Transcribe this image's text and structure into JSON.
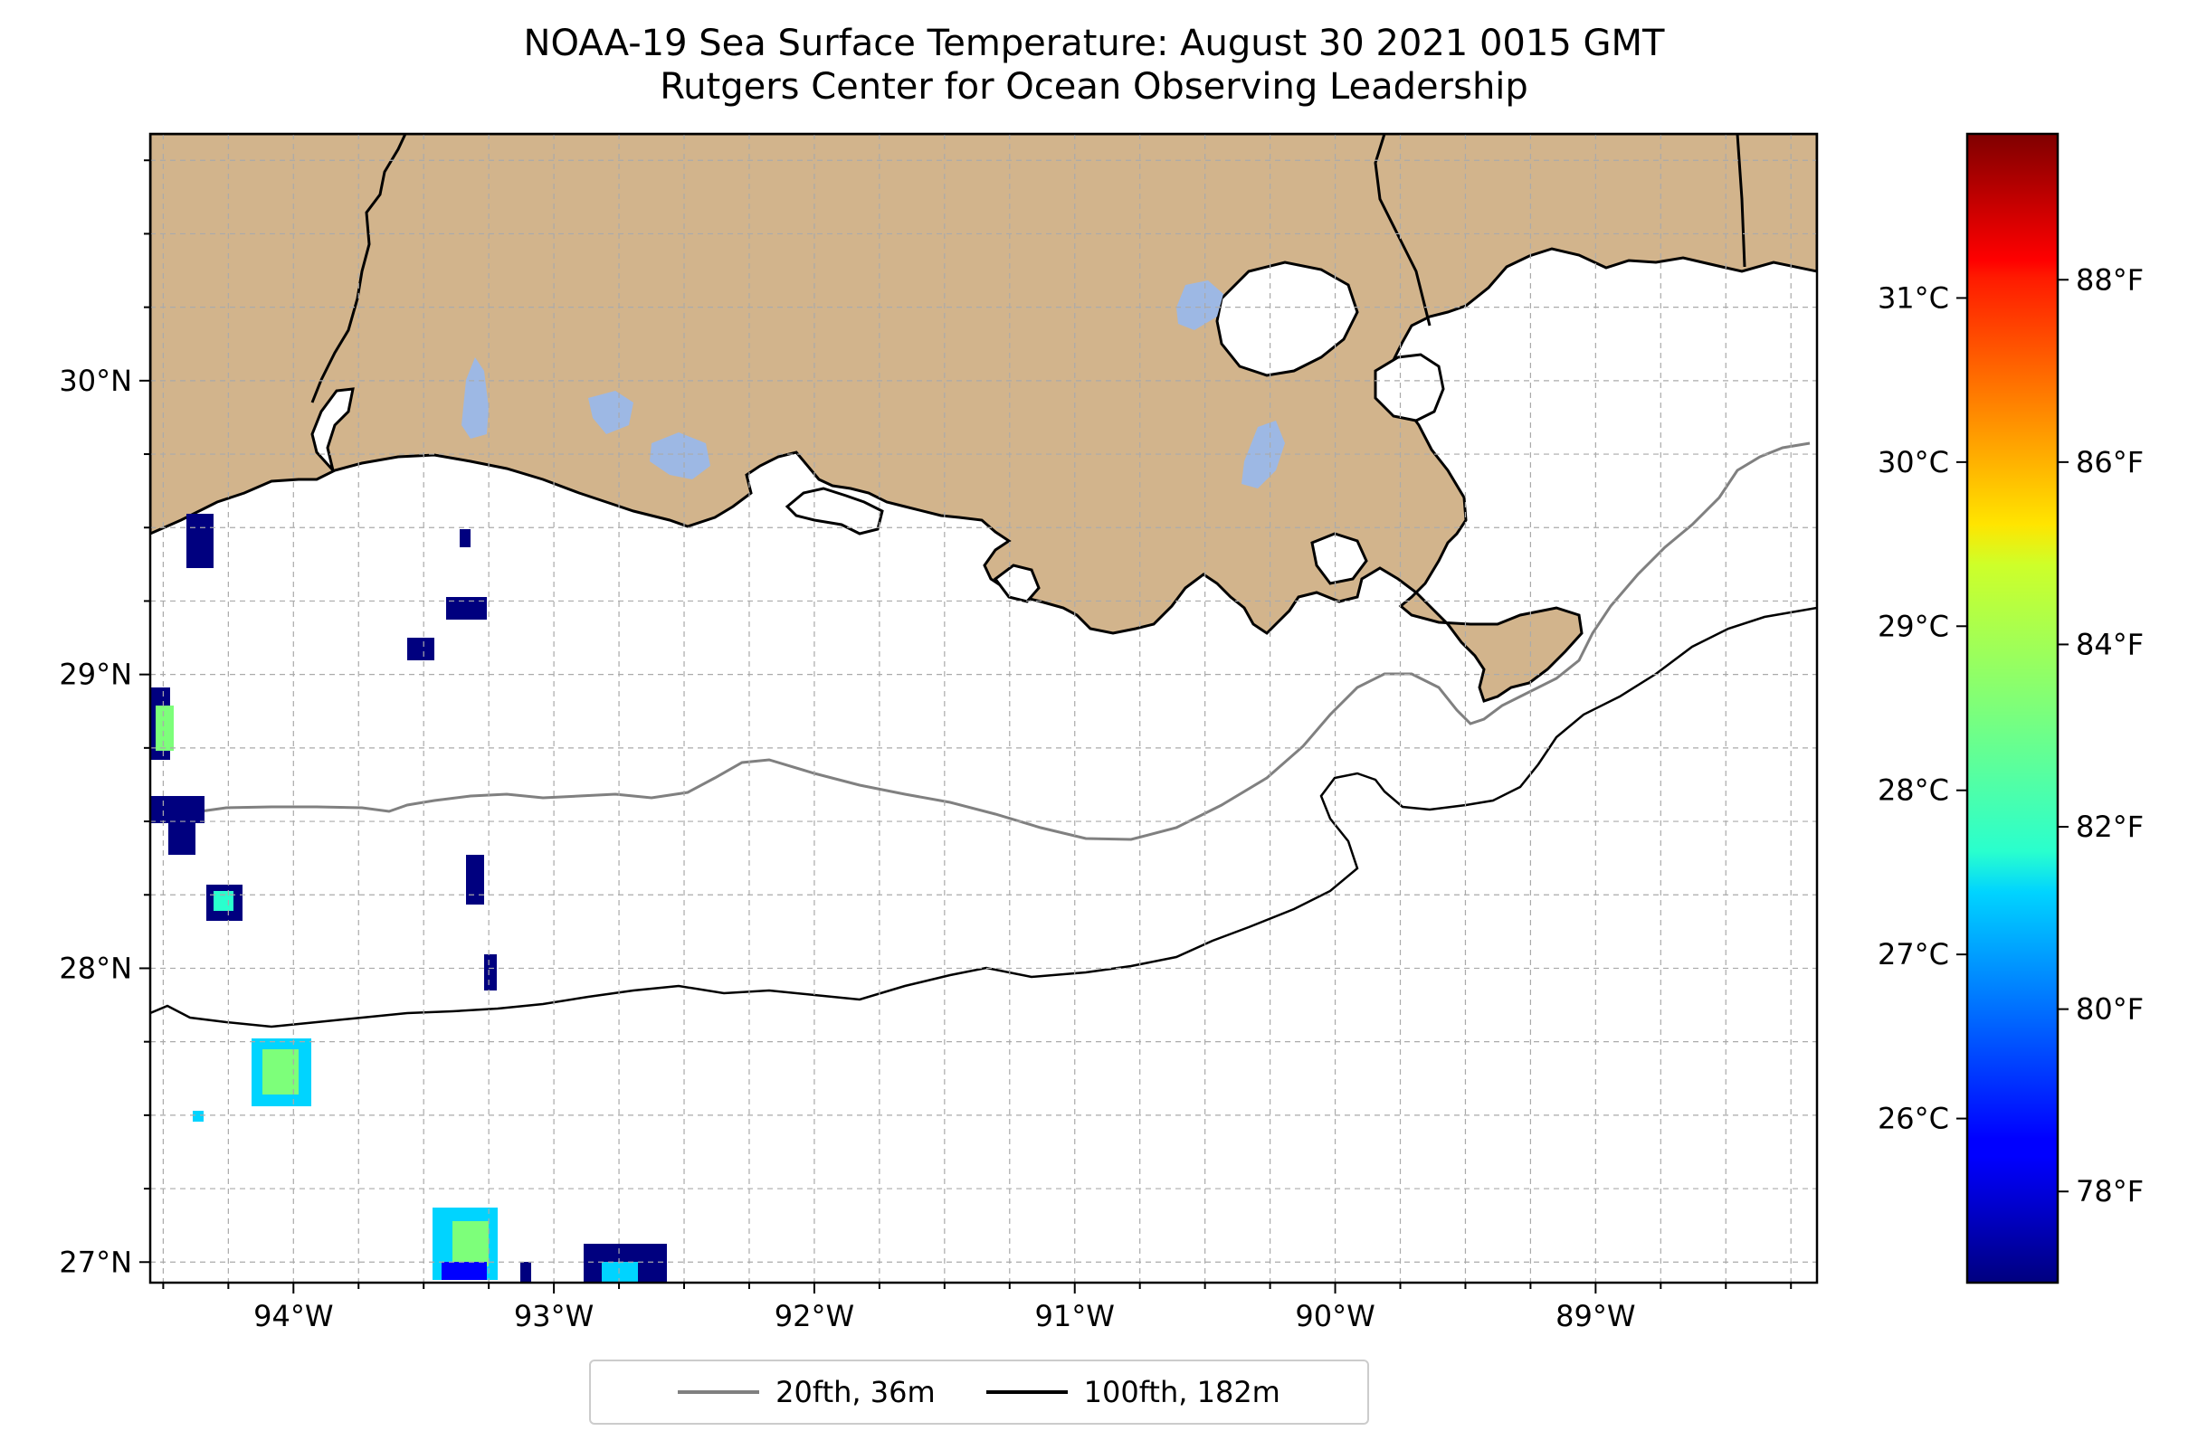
{
  "title": {
    "line1": "NOAA-19 Sea Surface Temperature: August 30 2021 0015 GMT",
    "line2": "Rutgers Center for Ocean Observing Leadership"
  },
  "map": {
    "lon_range": [
      -94.55,
      -88.15
    ],
    "lat_range": [
      26.93,
      30.84
    ],
    "lon_ticks": [
      {
        "value": -94,
        "label": "94°W"
      },
      {
        "value": -93,
        "label": "93°W"
      },
      {
        "value": -92,
        "label": "92°W"
      },
      {
        "value": -91,
        "label": "91°W"
      },
      {
        "value": -90,
        "label": "90°W"
      },
      {
        "value": -89,
        "label": "89°W"
      }
    ],
    "lat_ticks": [
      {
        "value": 27,
        "label": "27°N"
      },
      {
        "value": 28,
        "label": "28°N"
      },
      {
        "value": 29,
        "label": "29°N"
      },
      {
        "value": 30,
        "label": "30°N"
      }
    ],
    "grid_lines": true,
    "land_color": "#d2b48c",
    "lake_color": "#9db8e4",
    "ocean_color": "#ffffff"
  },
  "colorbar": {
    "colormap": "jet",
    "celsius_ticks": [
      {
        "value": 26,
        "label": "26°C"
      },
      {
        "value": 27,
        "label": "27°C"
      },
      {
        "value": 28,
        "label": "28°C"
      },
      {
        "value": 29,
        "label": "29°C"
      },
      {
        "value": 30,
        "label": "30°C"
      },
      {
        "value": 31,
        "label": "31°C"
      }
    ],
    "fahrenheit_ticks": [
      {
        "value": 78,
        "label": "78°F"
      },
      {
        "value": 80,
        "label": "80°F"
      },
      {
        "value": 82,
        "label": "82°F"
      },
      {
        "value": 84,
        "label": "84°F"
      },
      {
        "value": 86,
        "label": "86°F"
      },
      {
        "value": 88,
        "label": "88°F"
      }
    ],
    "range_f": [
      77.0,
      89.6
    ]
  },
  "legend": {
    "items": [
      {
        "label": "20fth, 36m",
        "color": "#808080"
      },
      {
        "label": "100fth, 182m",
        "color": "#000000"
      }
    ]
  }
}
